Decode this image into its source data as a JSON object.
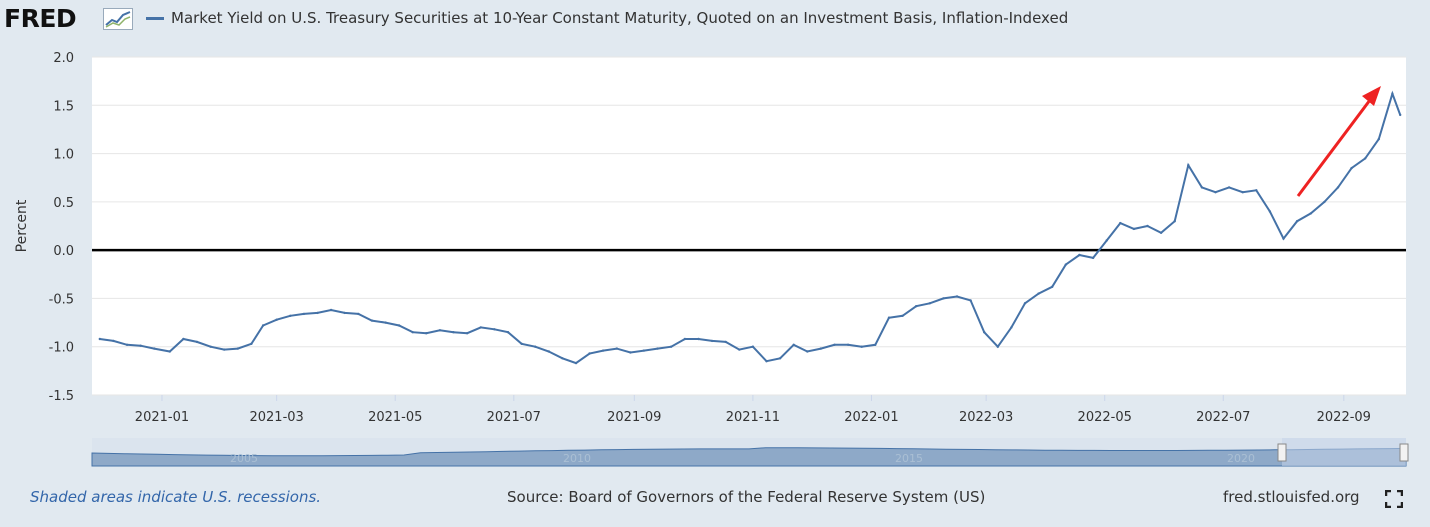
{
  "header": {
    "logo_text": "FRED",
    "logo_icon": "trend-line-icon",
    "series_title": "Market Yield on U.S. Treasury Securities at 10-Year Constant Maturity, Quoted on an Investment Basis, Inflation-Indexed"
  },
  "colors": {
    "series": "#4572a7",
    "zero_line": "#000000",
    "annotation_arrow": "#ee2222",
    "navigator_fill": "#8ea9c8",
    "navigator_window": "#c4d3ea"
  },
  "chart_data": {
    "type": "line",
    "title": "",
    "ylabel": "Percent",
    "xlabel": "",
    "ylim": [
      -1.5,
      2.0
    ],
    "yticks": [
      "2.0",
      "1.5",
      "1.0",
      "0.5",
      "0.0",
      "-0.5",
      "-1.0",
      "-1.5"
    ],
    "xticks": [
      "2021-01",
      "2021-03",
      "2021-05",
      "2021-07",
      "2021-09",
      "2021-11",
      "2022-01",
      "2022-03",
      "2022-05",
      "2022-07",
      "2022-09"
    ],
    "grid": true,
    "reference_line": {
      "y": 0.0
    },
    "series": [
      {
        "name": "Market Yield on U.S. Treasury Securities at 10-Year Constant Maturity, Quoted on an Investment Basis, Inflation-Indexed",
        "points": [
          [
            "2020-11-30",
            -0.92
          ],
          [
            "2020-12-07",
            -0.94
          ],
          [
            "2020-12-14",
            -0.98
          ],
          [
            "2020-12-21",
            -0.99
          ],
          [
            "2020-12-28",
            -1.02
          ],
          [
            "2021-01-05",
            -1.05
          ],
          [
            "2021-01-12",
            -0.92
          ],
          [
            "2021-01-19",
            -0.95
          ],
          [
            "2021-01-26",
            -1.0
          ],
          [
            "2021-02-02",
            -1.03
          ],
          [
            "2021-02-09",
            -1.02
          ],
          [
            "2021-02-16",
            -0.97
          ],
          [
            "2021-02-22",
            -0.78
          ],
          [
            "2021-03-01",
            -0.72
          ],
          [
            "2021-03-08",
            -0.68
          ],
          [
            "2021-03-15",
            -0.66
          ],
          [
            "2021-03-22",
            -0.65
          ],
          [
            "2021-03-29",
            -0.62
          ],
          [
            "2021-04-05",
            -0.65
          ],
          [
            "2021-04-12",
            -0.66
          ],
          [
            "2021-04-19",
            -0.73
          ],
          [
            "2021-04-26",
            -0.75
          ],
          [
            "2021-05-03",
            -0.78
          ],
          [
            "2021-05-10",
            -0.85
          ],
          [
            "2021-05-17",
            -0.86
          ],
          [
            "2021-05-24",
            -0.83
          ],
          [
            "2021-05-31",
            -0.85
          ],
          [
            "2021-06-07",
            -0.86
          ],
          [
            "2021-06-14",
            -0.8
          ],
          [
            "2021-06-21",
            -0.82
          ],
          [
            "2021-06-28",
            -0.85
          ],
          [
            "2021-07-05",
            -0.97
          ],
          [
            "2021-07-12",
            -1.0
          ],
          [
            "2021-07-19",
            -1.05
          ],
          [
            "2021-07-26",
            -1.12
          ],
          [
            "2021-08-02",
            -1.17
          ],
          [
            "2021-08-09",
            -1.07
          ],
          [
            "2021-08-16",
            -1.04
          ],
          [
            "2021-08-23",
            -1.02
          ],
          [
            "2021-08-30",
            -1.06
          ],
          [
            "2021-09-06",
            -1.04
          ],
          [
            "2021-09-13",
            -1.02
          ],
          [
            "2021-09-20",
            -1.0
          ],
          [
            "2021-09-27",
            -0.92
          ],
          [
            "2021-10-04",
            -0.92
          ],
          [
            "2021-10-11",
            -0.94
          ],
          [
            "2021-10-18",
            -0.95
          ],
          [
            "2021-10-25",
            -1.03
          ],
          [
            "2021-11-01",
            -1.0
          ],
          [
            "2021-11-08",
            -1.15
          ],
          [
            "2021-11-15",
            -1.12
          ],
          [
            "2021-11-22",
            -0.98
          ],
          [
            "2021-11-29",
            -1.05
          ],
          [
            "2021-12-06",
            -1.02
          ],
          [
            "2021-12-13",
            -0.98
          ],
          [
            "2021-12-20",
            -0.98
          ],
          [
            "2021-12-27",
            -1.0
          ],
          [
            "2022-01-03",
            -0.98
          ],
          [
            "2022-01-10",
            -0.7
          ],
          [
            "2022-01-17",
            -0.68
          ],
          [
            "2022-01-24",
            -0.58
          ],
          [
            "2022-01-31",
            -0.55
          ],
          [
            "2022-02-07",
            -0.5
          ],
          [
            "2022-02-14",
            -0.48
          ],
          [
            "2022-02-21",
            -0.52
          ],
          [
            "2022-02-28",
            -0.85
          ],
          [
            "2022-03-07",
            -1.0
          ],
          [
            "2022-03-14",
            -0.8
          ],
          [
            "2022-03-21",
            -0.55
          ],
          [
            "2022-03-28",
            -0.45
          ],
          [
            "2022-04-04",
            -0.38
          ],
          [
            "2022-04-11",
            -0.15
          ],
          [
            "2022-04-18",
            -0.05
          ],
          [
            "2022-04-25",
            -0.08
          ],
          [
            "2022-05-02",
            0.1
          ],
          [
            "2022-05-09",
            0.28
          ],
          [
            "2022-05-16",
            0.22
          ],
          [
            "2022-05-23",
            0.25
          ],
          [
            "2022-05-30",
            0.18
          ],
          [
            "2022-06-06",
            0.3
          ],
          [
            "2022-06-13",
            0.88
          ],
          [
            "2022-06-20",
            0.65
          ],
          [
            "2022-06-27",
            0.6
          ],
          [
            "2022-07-04",
            0.65
          ],
          [
            "2022-07-11",
            0.6
          ],
          [
            "2022-07-18",
            0.62
          ],
          [
            "2022-07-25",
            0.4
          ],
          [
            "2022-08-01",
            0.12
          ],
          [
            "2022-08-08",
            0.3
          ],
          [
            "2022-08-15",
            0.38
          ],
          [
            "2022-08-22",
            0.5
          ],
          [
            "2022-08-29",
            0.65
          ],
          [
            "2022-09-05",
            0.85
          ],
          [
            "2022-09-12",
            0.95
          ],
          [
            "2022-09-19",
            1.15
          ],
          [
            "2022-09-26",
            1.62
          ],
          [
            "2022-09-30",
            1.4
          ]
        ]
      }
    ]
  },
  "footer": {
    "recession_note": "Shaded areas indicate U.S. recessions.",
    "source": "Source: Board of Governors of the Federal Reserve System (US)",
    "site": "fred.stlouisfed.org"
  },
  "navigator": {
    "year_labels": [
      "2005",
      "2010",
      "2015",
      "2020"
    ]
  }
}
